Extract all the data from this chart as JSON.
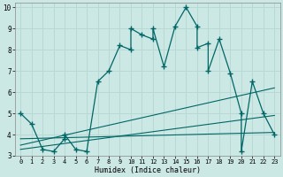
{
  "xlabel": "Humidex (Indice chaleur)",
  "bg_color": "#cce8e4",
  "grid_color": "#b8d8d4",
  "line_color": "#006666",
  "xlim": [
    -0.5,
    23.5
  ],
  "ylim": [
    3,
    10.2
  ],
  "xticks": [
    0,
    1,
    2,
    3,
    4,
    5,
    6,
    7,
    8,
    9,
    10,
    11,
    12,
    13,
    14,
    15,
    16,
    17,
    18,
    19,
    20,
    21,
    22,
    23
  ],
  "yticks": [
    3,
    4,
    5,
    6,
    7,
    8,
    9,
    10
  ],
  "main_x": [
    0,
    1,
    2,
    3,
    4,
    4,
    5,
    6,
    7,
    8,
    9,
    10,
    10,
    11,
    12,
    12,
    13,
    14,
    15,
    16,
    16,
    17,
    17,
    18,
    19,
    20,
    20,
    21,
    22,
    23
  ],
  "main_y": [
    5.0,
    4.5,
    3.3,
    3.2,
    3.8,
    4.0,
    3.3,
    3.2,
    6.5,
    7.0,
    8.2,
    8.0,
    9.0,
    8.7,
    8.5,
    9.0,
    7.2,
    9.1,
    10.0,
    9.1,
    8.1,
    8.3,
    7.0,
    8.5,
    6.9,
    5.0,
    3.2,
    6.5,
    5.0,
    4.0
  ],
  "trend1_x": [
    0,
    23
  ],
  "trend1_y": [
    3.5,
    6.2
  ],
  "trend2_x": [
    0,
    23
  ],
  "trend2_y": [
    3.3,
    4.9
  ],
  "trend3_x": [
    0,
    23
  ],
  "trend3_y": [
    3.8,
    4.1
  ]
}
